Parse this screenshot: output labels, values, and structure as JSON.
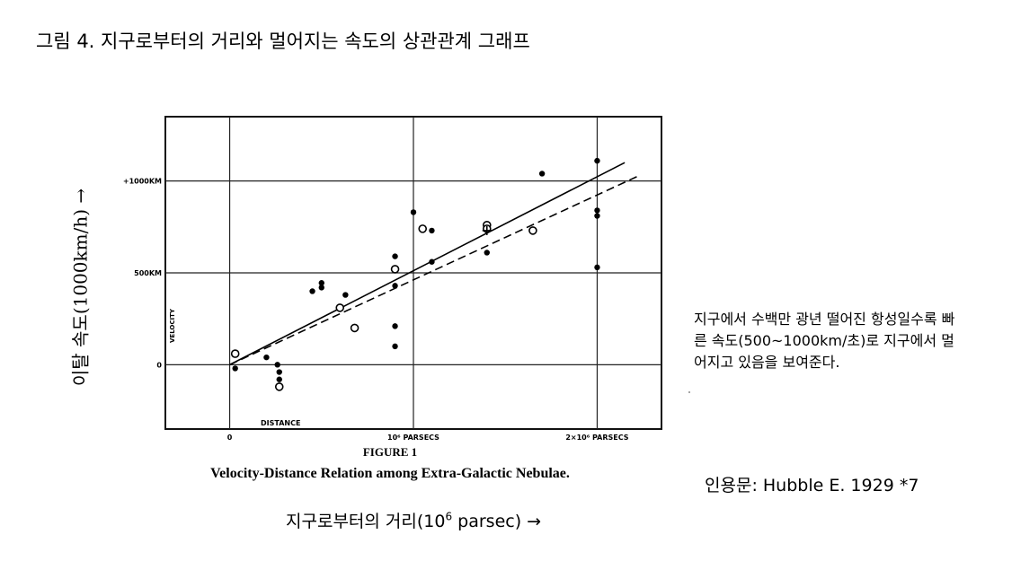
{
  "page": {
    "title": "그림 4. 지구로부터의 거리와 멀어지는 속도의 상관관계 그래프",
    "ylabel": "이탈 속도(1000km/h) →",
    "xlabel_prefix": "지구로부터의 거리(10",
    "xlabel_sup": "6",
    "xlabel_suffix": " parsec) →",
    "note": "지구에서 수백만 광년 떨어진 항성일수록 빠른 속도(500~1000km/초)로 지구에서 멀어지고 있음을 보여준다.",
    "citation": "인용문: Hubble E. 1929 *7"
  },
  "chart_data": {
    "type": "scatter",
    "figure_label": "FIGURE 1",
    "caption": "Velocity-Distance Relation among Extra-Galactic Nebulae.",
    "axis_inner_ylabel": "VELOCITY",
    "axis_inner_xlabel": "DISTANCE",
    "xlim": [
      -0.35,
      2.35
    ],
    "ylim": [
      -350,
      1350
    ],
    "x_ticks": [
      {
        "value": 0,
        "label": "0"
      },
      {
        "value": 1,
        "label": "10⁶ PARSECS"
      },
      {
        "value": 2,
        "label": "2×10⁶ PARSECS"
      }
    ],
    "y_ticks": [
      {
        "value": 0,
        "label": "0"
      },
      {
        "value": 500,
        "label": "500KM"
      },
      {
        "value": 1000,
        "label": "+1000KM"
      }
    ],
    "grid": true,
    "series": [
      {
        "marker": "filled-circle",
        "points": [
          [
            0.03,
            -20
          ],
          [
            0.2,
            40
          ],
          [
            0.26,
            0
          ],
          [
            0.27,
            -40
          ],
          [
            0.27,
            -80
          ],
          [
            0.45,
            400
          ],
          [
            0.5,
            420
          ],
          [
            0.5,
            445
          ],
          [
            0.63,
            380
          ],
          [
            0.9,
            590
          ],
          [
            0.9,
            430
          ],
          [
            0.9,
            210
          ],
          [
            0.9,
            100
          ],
          [
            1.0,
            830
          ],
          [
            1.1,
            730
          ],
          [
            1.1,
            560
          ],
          [
            1.4,
            610
          ],
          [
            1.7,
            1040
          ],
          [
            2.0,
            1110
          ],
          [
            2.0,
            840
          ],
          [
            2.0,
            810
          ],
          [
            2.0,
            530
          ]
        ]
      },
      {
        "marker": "open-circle",
        "points": [
          [
            0.03,
            60
          ],
          [
            0.27,
            -120
          ],
          [
            0.6,
            310
          ],
          [
            0.68,
            200
          ],
          [
            0.9,
            520
          ],
          [
            1.05,
            740
          ],
          [
            1.4,
            760
          ],
          [
            1.4,
            740
          ],
          [
            1.65,
            730
          ]
        ]
      },
      {
        "marker": "cross",
        "points": [
          [
            1.4,
            730
          ]
        ]
      }
    ],
    "lines": [
      {
        "style": "solid",
        "from": [
          0,
          0
        ],
        "to": [
          2.15,
          1100
        ]
      },
      {
        "style": "dashed",
        "from": [
          0,
          0
        ],
        "to": [
          2.23,
          1030
        ]
      }
    ]
  }
}
